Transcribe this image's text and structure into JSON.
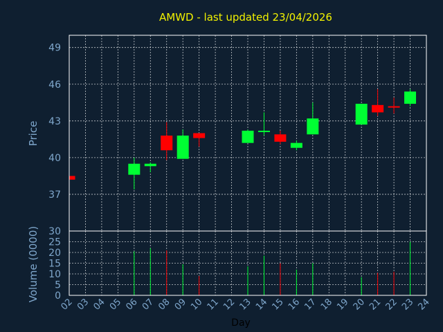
{
  "chart_data": [
    {
      "type": "candlestick",
      "title": "AMWD - last updated 23/04/2026",
      "ylabel": "Price",
      "ylim": [
        34,
        50
      ],
      "yticks": [
        37,
        40,
        43,
        46,
        49
      ],
      "grid": true,
      "up_color": "#00ff33",
      "down_color": "#ff0000",
      "candles": [
        {
          "day": "02",
          "open": 38.5,
          "high": 38.5,
          "low": 38.2,
          "close": 38.2
        },
        {
          "day": "06",
          "open": 38.6,
          "high": 40.0,
          "low": 37.4,
          "close": 39.5
        },
        {
          "day": "07",
          "open": 39.3,
          "high": 39.6,
          "low": 38.8,
          "close": 39.5
        },
        {
          "day": "08",
          "open": 41.8,
          "high": 42.9,
          "low": 39.8,
          "close": 40.6
        },
        {
          "day": "09",
          "open": 39.9,
          "high": 42.3,
          "low": 39.9,
          "close": 41.8
        },
        {
          "day": "10",
          "open": 42.0,
          "high": 42.0,
          "low": 40.9,
          "close": 41.6
        },
        {
          "day": "13",
          "open": 41.2,
          "high": 42.3,
          "low": 41.2,
          "close": 42.2
        },
        {
          "day": "14",
          "open": 42.1,
          "high": 43.7,
          "low": 41.8,
          "close": 42.2
        },
        {
          "day": "15",
          "open": 41.9,
          "high": 42.2,
          "low": 41.1,
          "close": 41.3
        },
        {
          "day": "16",
          "open": 40.8,
          "high": 41.4,
          "low": 40.6,
          "close": 41.2
        },
        {
          "day": "17",
          "open": 41.9,
          "high": 44.5,
          "low": 41.9,
          "close": 43.2
        },
        {
          "day": "20",
          "open": 42.7,
          "high": 44.4,
          "low": 42.7,
          "close": 44.4
        },
        {
          "day": "21",
          "open": 44.3,
          "high": 45.6,
          "low": 43.4,
          "close": 43.7
        },
        {
          "day": "22",
          "open": 44.2,
          "high": 44.9,
          "low": 43.6,
          "close": 44.1
        },
        {
          "day": "23",
          "open": 44.4,
          "high": 45.6,
          "low": 44.2,
          "close": 45.4
        }
      ]
    },
    {
      "type": "bar",
      "ylabel": "Volume (0000)",
      "xlabel": "Day",
      "ylim": [
        0,
        30
      ],
      "yticks": [
        0,
        5,
        10,
        15,
        20,
        25,
        30
      ],
      "x_ticks": [
        "02",
        "03",
        "04",
        "05",
        "06",
        "07",
        "08",
        "09",
        "10",
        "11",
        "12",
        "13",
        "14",
        "15",
        "16",
        "17",
        "18",
        "19",
        "20",
        "21",
        "22",
        "23",
        "24"
      ],
      "volumes": [
        {
          "day": "06",
          "value": 20.5,
          "direction": "up"
        },
        {
          "day": "07",
          "value": 22.0,
          "direction": "up"
        },
        {
          "day": "08",
          "value": 21.0,
          "direction": "down"
        },
        {
          "day": "09",
          "value": 14.5,
          "direction": "up"
        },
        {
          "day": "10",
          "value": 9.0,
          "direction": "down"
        },
        {
          "day": "13",
          "value": 13.5,
          "direction": "up"
        },
        {
          "day": "14",
          "value": 18.5,
          "direction": "up"
        },
        {
          "day": "15",
          "value": 15.0,
          "direction": "down"
        },
        {
          "day": "16",
          "value": 12.0,
          "direction": "up"
        },
        {
          "day": "17",
          "value": 15.0,
          "direction": "up"
        },
        {
          "day": "20",
          "value": 8.5,
          "direction": "up"
        },
        {
          "day": "21",
          "value": 10.5,
          "direction": "down"
        },
        {
          "day": "22",
          "value": 11.0,
          "direction": "down"
        },
        {
          "day": "23",
          "value": 25.0,
          "direction": "up"
        }
      ]
    }
  ]
}
